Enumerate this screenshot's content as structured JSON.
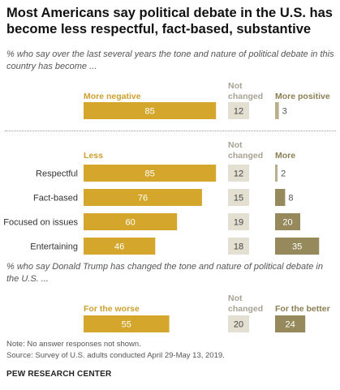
{
  "title": "Most Americans say political debate in the U.S. has become less respectful, fact-based, substantive",
  "colors": {
    "negative": "#d4a72c",
    "unchanged": "#e3e0d2",
    "positive": "#968a5d",
    "positive_light": "#b8b08c"
  },
  "chart_data": [
    {
      "type": "bar",
      "subtitle": "% who say over the last several years the tone and nature of political debate in this country has become ...",
      "column_headers": {
        "negative": "More negative",
        "unchanged_line1": "Not",
        "unchanged_line2": "changed",
        "positive": "More positive"
      },
      "categories": [
        ""
      ],
      "series": [
        {
          "name": "More negative",
          "values": [
            85
          ]
        },
        {
          "name": "Not changed",
          "values": [
            12
          ]
        },
        {
          "name": "More positive",
          "values": [
            3
          ]
        }
      ]
    },
    {
      "type": "bar",
      "column_headers": {
        "negative": "Less",
        "unchanged_line1": "Not",
        "unchanged_line2": "changed",
        "positive": "More"
      },
      "categories": [
        "Respectful",
        "Fact-based",
        "Focused on issues",
        "Entertaining"
      ],
      "series": [
        {
          "name": "Less",
          "values": [
            85,
            76,
            60,
            46
          ]
        },
        {
          "name": "Not changed",
          "values": [
            12,
            15,
            19,
            18
          ]
        },
        {
          "name": "More",
          "values": [
            2,
            8,
            20,
            35
          ]
        }
      ]
    },
    {
      "type": "bar",
      "subtitle": "% who say Donald Trump has changed the tone and nature of political debate in the U.S. ...",
      "column_headers": {
        "negative": "For the worse",
        "unchanged_line1": "Not",
        "unchanged_line2": "changed",
        "positive": "For the better"
      },
      "categories": [
        ""
      ],
      "series": [
        {
          "name": "For the worse",
          "values": [
            55
          ]
        },
        {
          "name": "Not changed",
          "values": [
            20
          ]
        },
        {
          "name": "For the better",
          "values": [
            24
          ]
        }
      ]
    }
  ],
  "note": "Note: No answer responses not shown.",
  "source": "Source: Survey of U.S. adults conducted April 29-May 13, 2019.",
  "org": "PEW RESEARCH CENTER"
}
